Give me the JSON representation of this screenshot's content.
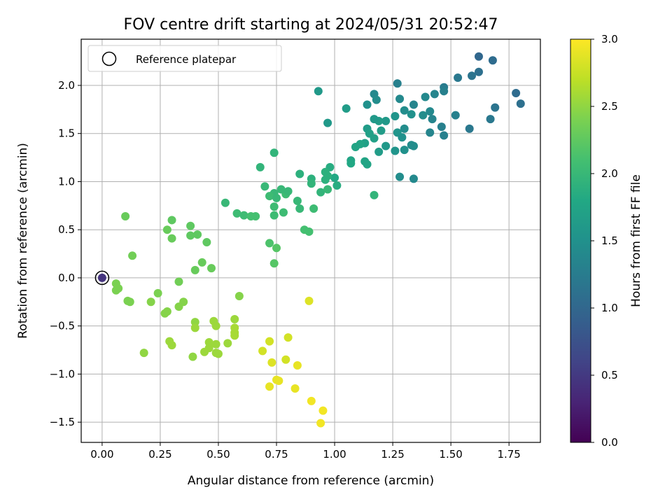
{
  "chart_data": {
    "type": "scatter",
    "title": "FOV centre drift starting at 2024/05/31 20:52:47",
    "xlabel": "Angular distance from reference (arcmin)",
    "ylabel": "Rotation from reference (arcmin)",
    "xlim": [
      -0.09,
      1.885
    ],
    "ylim": [
      -1.71,
      2.48
    ],
    "xticks": [
      0.0,
      0.25,
      0.5,
      0.75,
      1.0,
      1.25,
      1.5,
      1.75
    ],
    "xtick_labels": [
      "0.00",
      "0.25",
      "0.50",
      "0.75",
      "1.00",
      "1.25",
      "1.50",
      "1.75"
    ],
    "yticks": [
      -1.5,
      -1.0,
      -0.5,
      0.0,
      0.5,
      1.0,
      1.5,
      2.0
    ],
    "ytick_labels": [
      "−1.5",
      "−1.0",
      "−0.5",
      "0.0",
      "0.5",
      "1.0",
      "1.5",
      "2.0"
    ],
    "grid": true,
    "legend": {
      "placement": "upper-left",
      "entries": [
        "Reference platepar"
      ]
    },
    "colorbar": {
      "label": "Hours from first FF file",
      "colormap": "viridis",
      "range": [
        0.0,
        3.0
      ],
      "ticks": [
        0.0,
        0.5,
        1.0,
        1.5,
        2.0,
        2.5,
        3.0
      ],
      "tick_labels": [
        "0.0",
        "0.5",
        "1.0",
        "1.5",
        "2.0",
        "2.5",
        "3.0"
      ]
    },
    "reference_point": {
      "x": 0.0,
      "y": 0.0,
      "c": 0.45
    },
    "points": [
      {
        "x": 1.62,
        "y": 2.3,
        "c": 1.0
      },
      {
        "x": 1.68,
        "y": 2.26,
        "c": 1.05
      },
      {
        "x": 1.62,
        "y": 2.14,
        "c": 1.1
      },
      {
        "x": 1.59,
        "y": 2.1,
        "c": 1.15
      },
      {
        "x": 1.53,
        "y": 2.08,
        "c": 1.2
      },
      {
        "x": 1.78,
        "y": 1.92,
        "c": 1.05
      },
      {
        "x": 1.8,
        "y": 1.81,
        "c": 1.1
      },
      {
        "x": 1.69,
        "y": 1.77,
        "c": 1.15
      },
      {
        "x": 1.67,
        "y": 1.65,
        "c": 1.2
      },
      {
        "x": 1.58,
        "y": 1.55,
        "c": 1.2
      },
      {
        "x": 1.52,
        "y": 1.69,
        "c": 1.3
      },
      {
        "x": 1.47,
        "y": 1.98,
        "c": 1.25
      },
      {
        "x": 1.47,
        "y": 1.94,
        "c": 1.3
      },
      {
        "x": 1.43,
        "y": 1.91,
        "c": 1.35
      },
      {
        "x": 1.39,
        "y": 1.88,
        "c": 1.4
      },
      {
        "x": 1.27,
        "y": 2.02,
        "c": 1.3
      },
      {
        "x": 1.17,
        "y": 1.91,
        "c": 1.4
      },
      {
        "x": 1.18,
        "y": 1.85,
        "c": 1.45
      },
      {
        "x": 1.14,
        "y": 1.8,
        "c": 1.5
      },
      {
        "x": 1.28,
        "y": 1.86,
        "c": 1.4
      },
      {
        "x": 1.34,
        "y": 1.8,
        "c": 1.35
      },
      {
        "x": 1.3,
        "y": 1.74,
        "c": 1.45
      },
      {
        "x": 1.33,
        "y": 1.7,
        "c": 1.5
      },
      {
        "x": 1.38,
        "y": 1.69,
        "c": 1.45
      },
      {
        "x": 1.41,
        "y": 1.73,
        "c": 1.4
      },
      {
        "x": 1.42,
        "y": 1.65,
        "c": 1.35
      },
      {
        "x": 1.46,
        "y": 1.57,
        "c": 1.3
      },
      {
        "x": 1.47,
        "y": 1.48,
        "c": 1.3
      },
      {
        "x": 1.41,
        "y": 1.51,
        "c": 1.35
      },
      {
        "x": 1.3,
        "y": 1.55,
        "c": 1.45
      },
      {
        "x": 1.26,
        "y": 1.68,
        "c": 1.55
      },
      {
        "x": 1.22,
        "y": 1.63,
        "c": 1.6
      },
      {
        "x": 1.19,
        "y": 1.63,
        "c": 1.65
      },
      {
        "x": 1.17,
        "y": 1.65,
        "c": 1.6
      },
      {
        "x": 1.14,
        "y": 1.55,
        "c": 1.65
      },
      {
        "x": 1.15,
        "y": 1.5,
        "c": 1.7
      },
      {
        "x": 1.13,
        "y": 1.4,
        "c": 1.7
      },
      {
        "x": 1.11,
        "y": 1.39,
        "c": 1.75
      },
      {
        "x": 1.09,
        "y": 1.36,
        "c": 1.75
      },
      {
        "x": 1.17,
        "y": 1.45,
        "c": 1.7
      },
      {
        "x": 1.2,
        "y": 1.53,
        "c": 1.65
      },
      {
        "x": 1.27,
        "y": 1.51,
        "c": 1.55
      },
      {
        "x": 1.29,
        "y": 1.46,
        "c": 1.5
      },
      {
        "x": 1.33,
        "y": 1.38,
        "c": 1.45
      },
      {
        "x": 1.34,
        "y": 1.37,
        "c": 1.45
      },
      {
        "x": 1.3,
        "y": 1.33,
        "c": 1.5
      },
      {
        "x": 1.26,
        "y": 1.32,
        "c": 1.55
      },
      {
        "x": 1.22,
        "y": 1.37,
        "c": 1.6
      },
      {
        "x": 1.19,
        "y": 1.31,
        "c": 1.65
      },
      {
        "x": 1.13,
        "y": 1.21,
        "c": 1.75
      },
      {
        "x": 1.14,
        "y": 1.18,
        "c": 1.75
      },
      {
        "x": 1.07,
        "y": 1.22,
        "c": 1.75
      },
      {
        "x": 1.07,
        "y": 1.19,
        "c": 1.8
      },
      {
        "x": 1.28,
        "y": 1.05,
        "c": 1.45
      },
      {
        "x": 1.34,
        "y": 1.03,
        "c": 1.4
      },
      {
        "x": 1.05,
        "y": 1.76,
        "c": 1.65
      },
      {
        "x": 0.93,
        "y": 1.94,
        "c": 1.6
      },
      {
        "x": 0.97,
        "y": 1.61,
        "c": 1.6
      },
      {
        "x": 1.17,
        "y": 0.86,
        "c": 1.95
      },
      {
        "x": 1.0,
        "y": 1.04,
        "c": 1.8
      },
      {
        "x": 1.01,
        "y": 0.96,
        "c": 1.85
      },
      {
        "x": 0.98,
        "y": 1.15,
        "c": 1.85
      },
      {
        "x": 0.96,
        "y": 1.1,
        "c": 1.9
      },
      {
        "x": 0.97,
        "y": 1.06,
        "c": 1.9
      },
      {
        "x": 0.96,
        "y": 1.02,
        "c": 1.9
      },
      {
        "x": 0.9,
        "y": 1.03,
        "c": 1.9
      },
      {
        "x": 0.9,
        "y": 0.98,
        "c": 1.95
      },
      {
        "x": 0.85,
        "y": 1.08,
        "c": 1.9
      },
      {
        "x": 0.94,
        "y": 0.89,
        "c": 1.95
      },
      {
        "x": 0.97,
        "y": 0.92,
        "c": 2.0
      },
      {
        "x": 0.84,
        "y": 0.8,
        "c": 2.0
      },
      {
        "x": 0.85,
        "y": 0.72,
        "c": 2.0
      },
      {
        "x": 0.91,
        "y": 0.72,
        "c": 2.05
      },
      {
        "x": 0.79,
        "y": 0.87,
        "c": 2.05
      },
      {
        "x": 0.8,
        "y": 0.9,
        "c": 2.0
      },
      {
        "x": 0.77,
        "y": 0.92,
        "c": 2.0
      },
      {
        "x": 0.74,
        "y": 0.88,
        "c": 2.0
      },
      {
        "x": 0.72,
        "y": 0.85,
        "c": 2.05
      },
      {
        "x": 0.75,
        "y": 0.83,
        "c": 2.0
      },
      {
        "x": 0.7,
        "y": 0.95,
        "c": 2.0
      },
      {
        "x": 0.74,
        "y": 0.74,
        "c": 2.05
      },
      {
        "x": 0.74,
        "y": 0.65,
        "c": 2.05
      },
      {
        "x": 0.78,
        "y": 0.68,
        "c": 2.05
      },
      {
        "x": 0.68,
        "y": 1.15,
        "c": 1.95
      },
      {
        "x": 0.74,
        "y": 1.3,
        "c": 1.95
      },
      {
        "x": 0.53,
        "y": 0.78,
        "c": 2.0
      },
      {
        "x": 0.58,
        "y": 0.67,
        "c": 2.05
      },
      {
        "x": 0.61,
        "y": 0.65,
        "c": 2.05
      },
      {
        "x": 0.64,
        "y": 0.64,
        "c": 2.1
      },
      {
        "x": 0.66,
        "y": 0.64,
        "c": 2.1
      },
      {
        "x": 0.87,
        "y": 0.5,
        "c": 2.1
      },
      {
        "x": 0.89,
        "y": 0.48,
        "c": 2.1
      },
      {
        "x": 0.72,
        "y": 0.36,
        "c": 2.15
      },
      {
        "x": 0.75,
        "y": 0.31,
        "c": 2.2
      },
      {
        "x": 0.74,
        "y": 0.15,
        "c": 2.2
      },
      {
        "x": 0.1,
        "y": 0.64,
        "c": 2.3
      },
      {
        "x": 0.3,
        "y": 0.6,
        "c": 2.25
      },
      {
        "x": 0.38,
        "y": 0.54,
        "c": 2.25
      },
      {
        "x": 0.28,
        "y": 0.5,
        "c": 2.3
      },
      {
        "x": 0.41,
        "y": 0.45,
        "c": 2.25
      },
      {
        "x": 0.38,
        "y": 0.44,
        "c": 2.25
      },
      {
        "x": 0.3,
        "y": 0.41,
        "c": 2.3
      },
      {
        "x": 0.45,
        "y": 0.37,
        "c": 2.25
      },
      {
        "x": 0.13,
        "y": 0.23,
        "c": 2.35
      },
      {
        "x": 0.43,
        "y": 0.16,
        "c": 2.3
      },
      {
        "x": 0.47,
        "y": 0.1,
        "c": 2.3
      },
      {
        "x": 0.4,
        "y": 0.08,
        "c": 2.3
      },
      {
        "x": 0.33,
        "y": -0.04,
        "c": 2.35
      },
      {
        "x": 0.06,
        "y": -0.06,
        "c": 2.4
      },
      {
        "x": 0.07,
        "y": -0.11,
        "c": 2.4
      },
      {
        "x": 0.06,
        "y": -0.13,
        "c": 2.4
      },
      {
        "x": 0.11,
        "y": -0.24,
        "c": 2.4
      },
      {
        "x": 0.12,
        "y": -0.25,
        "c": 2.4
      },
      {
        "x": 0.24,
        "y": -0.16,
        "c": 2.4
      },
      {
        "x": 0.21,
        "y": -0.25,
        "c": 2.45
      },
      {
        "x": 0.59,
        "y": -0.19,
        "c": 2.45
      },
      {
        "x": 0.35,
        "y": -0.25,
        "c": 2.45
      },
      {
        "x": 0.33,
        "y": -0.3,
        "c": 2.45
      },
      {
        "x": 0.28,
        "y": -0.35,
        "c": 2.45
      },
      {
        "x": 0.27,
        "y": -0.37,
        "c": 2.45
      },
      {
        "x": 0.4,
        "y": -0.46,
        "c": 2.5
      },
      {
        "x": 0.4,
        "y": -0.52,
        "c": 2.55
      },
      {
        "x": 0.48,
        "y": -0.45,
        "c": 2.55
      },
      {
        "x": 0.49,
        "y": -0.5,
        "c": 2.55
      },
      {
        "x": 0.57,
        "y": -0.43,
        "c": 2.55
      },
      {
        "x": 0.57,
        "y": -0.52,
        "c": 2.6
      },
      {
        "x": 0.57,
        "y": -0.57,
        "c": 2.6
      },
      {
        "x": 0.57,
        "y": -0.6,
        "c": 2.6
      },
      {
        "x": 0.29,
        "y": -0.66,
        "c": 2.55
      },
      {
        "x": 0.3,
        "y": -0.7,
        "c": 2.55
      },
      {
        "x": 0.46,
        "y": -0.67,
        "c": 2.55
      },
      {
        "x": 0.49,
        "y": -0.69,
        "c": 2.55
      },
      {
        "x": 0.54,
        "y": -0.68,
        "c": 2.55
      },
      {
        "x": 0.44,
        "y": -0.77,
        "c": 2.55
      },
      {
        "x": 0.46,
        "y": -0.73,
        "c": 2.55
      },
      {
        "x": 0.49,
        "y": -0.78,
        "c": 2.55
      },
      {
        "x": 0.5,
        "y": -0.79,
        "c": 2.55
      },
      {
        "x": 0.18,
        "y": -0.78,
        "c": 2.5
      },
      {
        "x": 0.39,
        "y": -0.82,
        "c": 2.5
      },
      {
        "x": 0.89,
        "y": -0.24,
        "c": 2.85
      },
      {
        "x": 0.72,
        "y": -0.66,
        "c": 2.8
      },
      {
        "x": 0.8,
        "y": -0.62,
        "c": 2.8
      },
      {
        "x": 0.69,
        "y": -0.76,
        "c": 2.8
      },
      {
        "x": 0.79,
        "y": -0.85,
        "c": 2.8
      },
      {
        "x": 0.73,
        "y": -0.88,
        "c": 2.85
      },
      {
        "x": 0.84,
        "y": -0.91,
        "c": 2.9
      },
      {
        "x": 0.75,
        "y": -1.06,
        "c": 2.9
      },
      {
        "x": 0.76,
        "y": -1.07,
        "c": 2.9
      },
      {
        "x": 0.72,
        "y": -1.13,
        "c": 2.9
      },
      {
        "x": 0.83,
        "y": -1.15,
        "c": 2.9
      },
      {
        "x": 0.9,
        "y": -1.28,
        "c": 2.95
      },
      {
        "x": 0.95,
        "y": -1.38,
        "c": 2.95
      },
      {
        "x": 0.94,
        "y": -1.51,
        "c": 2.95
      }
    ]
  }
}
